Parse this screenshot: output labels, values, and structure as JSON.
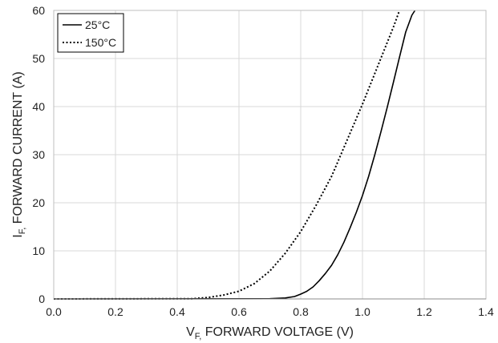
{
  "chart_data": {
    "type": "line",
    "xlabel": {
      "main": "V",
      "sub": "F,",
      "rest": " FORWARD VOLTAGE (V)"
    },
    "ylabel": {
      "main": "I",
      "sub": "F,",
      "rest": " FORWARD CURRENT (A)"
    },
    "xlim": [
      0,
      1.4
    ],
    "ylim": [
      0,
      60
    ],
    "xticks": [
      "0.0",
      "0.2",
      "0.4",
      "0.6",
      "0.8",
      "1.0",
      "1.2",
      "1.4"
    ],
    "yticks": [
      "0",
      "10",
      "20",
      "30",
      "40",
      "50",
      "60"
    ],
    "grid": true,
    "legend": "top-left",
    "series": [
      {
        "name": "25°C",
        "style": "solid",
        "color": "#000000",
        "x": [
          0.0,
          0.7,
          0.75,
          0.78,
          0.8,
          0.82,
          0.84,
          0.86,
          0.88,
          0.9,
          0.92,
          0.94,
          0.96,
          0.98,
          1.0,
          1.02,
          1.04,
          1.06,
          1.08,
          1.1,
          1.12,
          1.14,
          1.16,
          1.17
        ],
        "y": [
          0.0,
          0.05,
          0.2,
          0.5,
          1.0,
          1.6,
          2.5,
          3.8,
          5.3,
          7.0,
          9.2,
          11.8,
          14.8,
          18.0,
          21.5,
          25.5,
          30.0,
          34.8,
          39.8,
          45.0,
          50.3,
          55.5,
          59.0,
          60.0
        ]
      },
      {
        "name": "150°C",
        "style": "dotted",
        "color": "#000000",
        "x": [
          0.0,
          0.45,
          0.5,
          0.55,
          0.6,
          0.65,
          0.7,
          0.75,
          0.8,
          0.85,
          0.9,
          0.95,
          1.0,
          1.05,
          1.1,
          1.12
        ],
        "y": [
          0.0,
          0.05,
          0.3,
          0.8,
          1.6,
          3.2,
          5.8,
          9.5,
          14.0,
          19.5,
          25.5,
          33.0,
          40.5,
          48.5,
          56.5,
          60.0
        ]
      }
    ]
  }
}
